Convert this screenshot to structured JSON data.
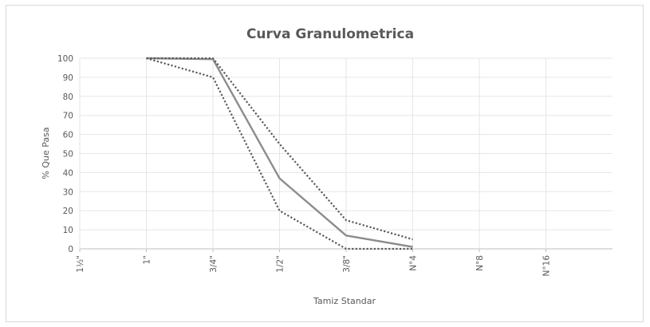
{
  "chart_data": {
    "type": "line",
    "title": "Curva Granulometrica",
    "xlabel": "Tamiz Standar",
    "ylabel": "% Que Pasa",
    "categories": [
      "1½\"",
      "1\"",
      "3/4\"",
      "1/2\"",
      "3/8\"",
      "N°4",
      "N°8",
      "N°16"
    ],
    "ylim": [
      0,
      100
    ],
    "yticks": [
      0,
      10,
      20,
      30,
      40,
      50,
      60,
      70,
      80,
      90,
      100
    ],
    "grid": true,
    "legend": "none",
    "series": [
      {
        "values": [
          null,
          100,
          99.5,
          37,
          7,
          1,
          null,
          null
        ],
        "style": "solid",
        "color": "#8c8c8c"
      },
      {
        "values": [
          null,
          100,
          100,
          55,
          15,
          5,
          null,
          null
        ],
        "style": "dotted",
        "color": "#595959"
      },
      {
        "values": [
          null,
          100,
          90,
          20,
          0,
          0,
          null,
          null
        ],
        "style": "dotted",
        "color": "#595959"
      }
    ]
  }
}
